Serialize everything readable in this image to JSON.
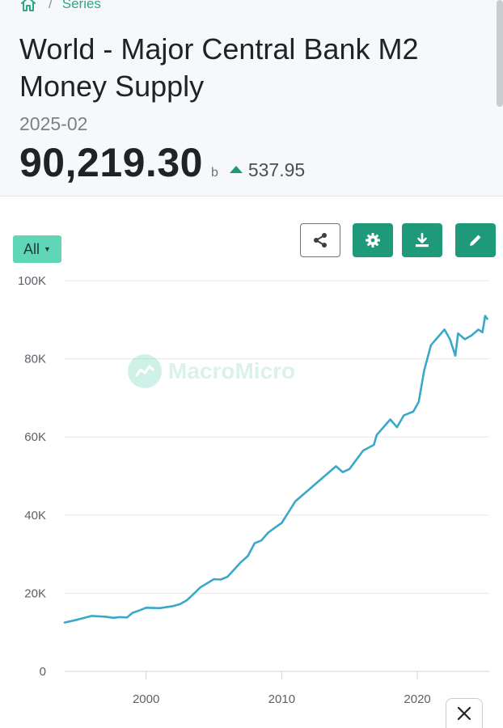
{
  "breadcrumb": {
    "items": [
      "Series"
    ]
  },
  "header": {
    "title": "World - Major Central Bank M2 Money Supply",
    "date": "2025-02",
    "value": "90,219.30",
    "unit": "b",
    "change": "537.95",
    "change_direction": "up"
  },
  "toolbar": {
    "range_label": "All",
    "buttons": [
      "share-icon",
      "gear-icon",
      "download-icon",
      "pencil-icon"
    ]
  },
  "watermark": "MacroMicro",
  "colors": {
    "accent": "#1e9a7a",
    "line": "#3aa8c8",
    "range": "#5fd6b5"
  },
  "chart_data": {
    "type": "line",
    "title": "",
    "xlabel": "",
    "ylabel": "",
    "ylim": [
      0,
      100000
    ],
    "xlim": [
      1994,
      2025.3
    ],
    "yticks": [
      0,
      20000,
      40000,
      60000,
      80000,
      100000
    ],
    "ytick_labels": [
      "0",
      "20K",
      "40K",
      "60K",
      "80K",
      "100K"
    ],
    "xticks": [
      2000,
      2010,
      2020
    ],
    "xtick_labels": [
      "2000",
      "2010",
      "2020"
    ],
    "grid": true,
    "series": [
      {
        "x": [
          1994,
          1995,
          1996,
          1997,
          1997.6,
          1998,
          1998.6,
          1999,
          1999.5,
          2000,
          2001,
          2002,
          2002.5,
          2003,
          2003.5,
          2004,
          2005,
          2005.5,
          2006,
          2007,
          2007.5,
          2008,
          2008.5,
          2009,
          2009.5,
          2010,
          2011,
          2012,
          2013,
          2014,
          2014.5,
          2015,
          2016,
          2016.8,
          2017,
          2018,
          2018.5,
          2019,
          2019.7,
          2020.1,
          2020.5,
          2021,
          2021.5,
          2022,
          2022.4,
          2022.8,
          2023,
          2023.5,
          2024,
          2024.5,
          2024.8,
          2025,
          2025.15
        ],
        "values": [
          12500,
          13300,
          14200,
          14000,
          13700,
          13900,
          13800,
          15000,
          15600,
          16300,
          16200,
          16700,
          17200,
          18200,
          19800,
          21500,
          23600,
          23500,
          24200,
          28000,
          29500,
          32800,
          33500,
          35500,
          36800,
          38000,
          43500,
          46500,
          49500,
          52500,
          51000,
          51800,
          56500,
          58000,
          60500,
          64500,
          62500,
          65500,
          66500,
          69000,
          77000,
          83500,
          85500,
          87500,
          85000,
          80800,
          86500,
          85000,
          86000,
          87500,
          86800,
          91000,
          90219
        ]
      }
    ]
  }
}
